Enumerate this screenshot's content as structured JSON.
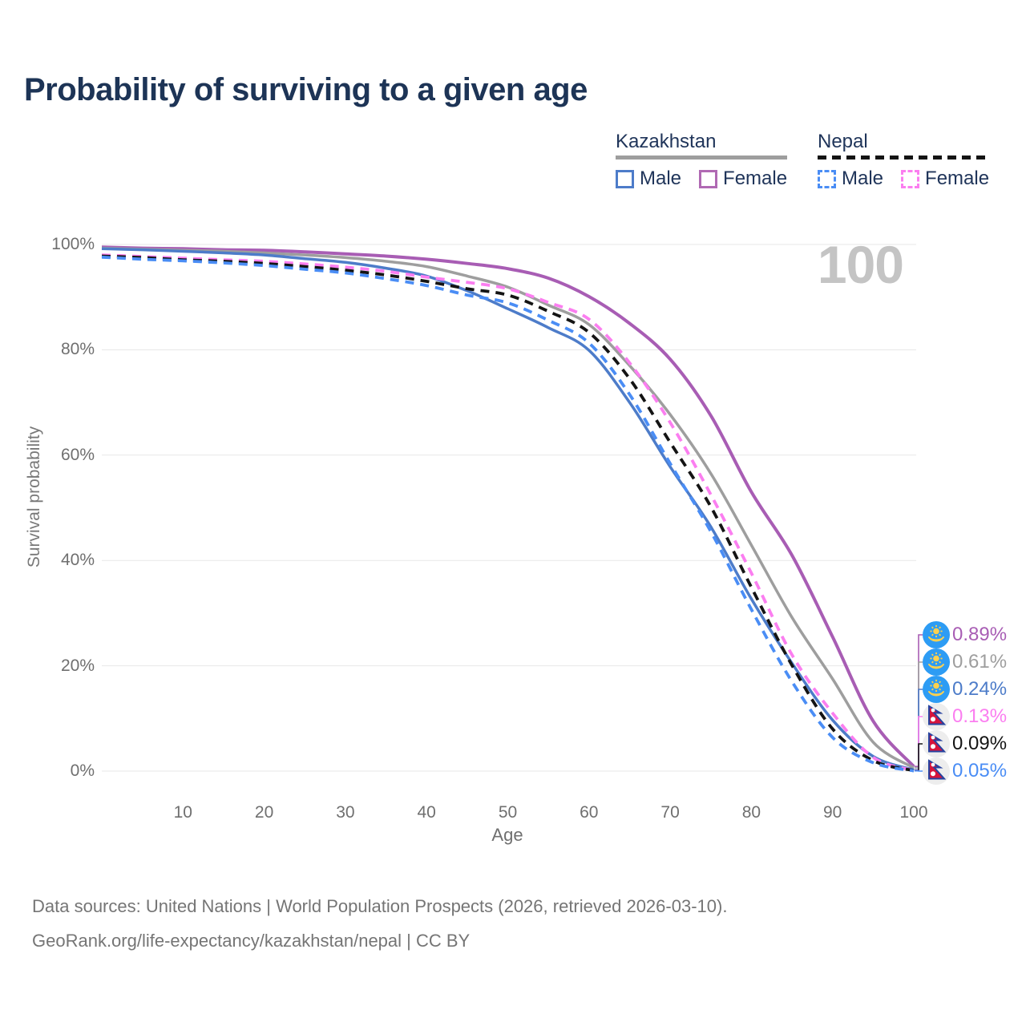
{
  "header": {
    "title": "Probability of surviving to a given age"
  },
  "watermark_age": "100",
  "colors": {
    "title_navy": "#1d3456",
    "axis_text_gray": "#6f6f6f",
    "gridline": "#e7e7e7",
    "watermark_gray": "#c4c4c4",
    "kazakhstan_flag_blue": "#2d9cf4",
    "kazakhstan_flag_gold": "#fdd14e",
    "nepal_flag_crimson": "#d6143c",
    "nepal_flag_blue": "#2743a0"
  },
  "legend": {
    "groups": [
      {
        "title": "Kazakhstan",
        "style": "solid",
        "items": [
          {
            "label": "Male",
            "color": "#4d7cc9"
          },
          {
            "label": "Female",
            "color": "#b069b3"
          }
        ]
      },
      {
        "title": "Nepal",
        "style": "dashed",
        "items": [
          {
            "label": "Male",
            "color": "#4a8df5"
          },
          {
            "label": "Female",
            "color": "#fb7ef0"
          }
        ]
      }
    ]
  },
  "chart_data": {
    "type": "line",
    "title": "Probability of surviving to a given age",
    "xlabel": "Age",
    "ylabel": "Survival probability",
    "xlim": [
      0,
      100
    ],
    "ylim": [
      0,
      100
    ],
    "grid": "horizontal",
    "x_ticks": [
      10,
      20,
      30,
      40,
      50,
      60,
      70,
      80,
      90,
      100
    ],
    "y_ticks": [
      0,
      20,
      40,
      60,
      80,
      100
    ],
    "y_tick_suffix": "%",
    "x": [
      0,
      5,
      10,
      15,
      20,
      25,
      30,
      35,
      40,
      45,
      50,
      55,
      60,
      65,
      70,
      75,
      80,
      85,
      90,
      95,
      100
    ],
    "series": [
      {
        "name": "Kazakhstan Female",
        "country": "Kazakhstan",
        "sex": "Female",
        "flag": "kazakhstan",
        "color": "#a85db4",
        "dash": false,
        "width": 4,
        "end_label": "0.89%",
        "values": [
          99.5,
          99.3,
          99.2,
          99.0,
          98.9,
          98.6,
          98.2,
          97.8,
          97.2,
          96.4,
          95.4,
          93.6,
          90.1,
          85.0,
          78.2,
          67.5,
          53.0,
          41.0,
          25.5,
          9.5,
          0.89
        ]
      },
      {
        "name": "Kazakhstan Both sexes",
        "country": "Kazakhstan",
        "sex": "Both",
        "flag": "kazakhstan",
        "color": "#9e9e9e",
        "dash": false,
        "width": 3.5,
        "end_label": "0.61%",
        "values": [
          99.3,
          99.1,
          98.9,
          98.7,
          98.4,
          98.0,
          97.5,
          96.8,
          95.8,
          94.0,
          91.9,
          88.5,
          84.8,
          77.0,
          67.7,
          56.5,
          42.9,
          29.2,
          17.5,
          5.5,
          0.61
        ]
      },
      {
        "name": "Kazakhstan Male",
        "country": "Kazakhstan",
        "sex": "Male",
        "flag": "kazakhstan",
        "color": "#4d7cc9",
        "dash": false,
        "width": 3.5,
        "end_label": "0.24%",
        "values": [
          99.2,
          99.0,
          98.7,
          98.4,
          98.0,
          97.3,
          96.6,
          95.5,
          94.0,
          91.2,
          87.8,
          84.2,
          79.9,
          70.0,
          57.8,
          46.4,
          32.7,
          20.5,
          9.7,
          2.8,
          0.24
        ]
      },
      {
        "name": "Nepal Female",
        "country": "Nepal",
        "sex": "Female",
        "flag": "nepal",
        "color": "#fb7ef0",
        "dash": true,
        "width": 3.8,
        "end_label": "0.13%",
        "values": [
          98.0,
          97.7,
          97.4,
          97.1,
          96.8,
          96.3,
          95.7,
          94.9,
          93.8,
          92.8,
          91.6,
          89.0,
          85.8,
          77.5,
          66.2,
          52.5,
          37.6,
          22.1,
          11.0,
          2.6,
          0.13
        ]
      },
      {
        "name": "Nepal Both sexes",
        "country": "Nepal",
        "sex": "Both",
        "flag": "nepal",
        "color": "#141414",
        "dash": true,
        "width": 3.8,
        "end_label": "0.09%",
        "values": [
          97.8,
          97.5,
          97.1,
          96.8,
          96.4,
          95.8,
          95.1,
          94.2,
          93.0,
          91.6,
          90.4,
          87.3,
          83.3,
          74.5,
          62.4,
          50.2,
          34.9,
          20.1,
          8.0,
          2.0,
          0.09
        ]
      },
      {
        "name": "Nepal Male",
        "country": "Nepal",
        "sex": "Male",
        "flag": "nepal",
        "color": "#4a8df5",
        "dash": true,
        "width": 3.8,
        "end_label": "0.05%",
        "values": [
          97.6,
          97.2,
          96.9,
          96.5,
          96.0,
          95.3,
          94.6,
          93.5,
          92.2,
          90.4,
          88.9,
          85.6,
          81.3,
          71.5,
          58.4,
          45.5,
          30.7,
          17.0,
          6.4,
          1.6,
          0.05
        ]
      }
    ]
  },
  "footer": {
    "line1": "Data sources: United Nations | World Population Prospects (2026, retrieved 2026-03-10).",
    "line2": "GeoRank.org/life-expectancy/kazakhstan/nepal | CC BY"
  }
}
